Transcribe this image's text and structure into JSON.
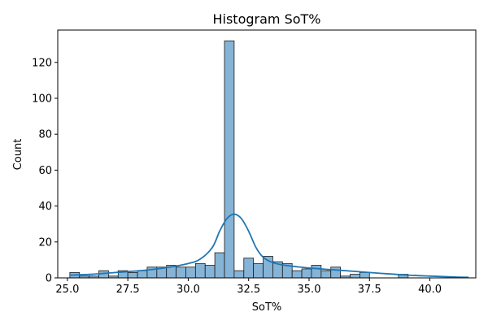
{
  "chart_data": {
    "type": "bar",
    "title": "Histogram SoT%",
    "xlabel": "SoT%",
    "ylabel": "Count",
    "xlim": [
      24.6,
      41.9
    ],
    "ylim": [
      0,
      138
    ],
    "xticks": [
      25.0,
      27.5,
      30.0,
      32.5,
      35.0,
      37.5,
      40.0
    ],
    "xtick_labels": [
      "25.0",
      "27.5",
      "30.0",
      "32.5",
      "35.0",
      "37.5",
      "40.0"
    ],
    "yticks": [
      0,
      20,
      40,
      60,
      80,
      100,
      120
    ],
    "ytick_labels": [
      "0",
      "20",
      "40",
      "60",
      "80",
      "100",
      "120"
    ],
    "grid": false,
    "colors": {
      "bar_fill": "#86b4d7",
      "bar_edge": "#1a1a1a",
      "kde_line": "#1f77b4"
    },
    "bins": {
      "edges": [
        25.1,
        25.5,
        25.9,
        26.3,
        26.7,
        27.1,
        27.5,
        27.9,
        28.3,
        28.7,
        29.1,
        29.5,
        29.9,
        30.3,
        30.7,
        31.1,
        31.5,
        31.9,
        32.3,
        32.7,
        33.1,
        33.5,
        33.9,
        34.3,
        34.7,
        35.1,
        35.5,
        35.9,
        36.3,
        36.7,
        37.1,
        37.5,
        37.9,
        38.3,
        38.7,
        39.1,
        39.5,
        39.9,
        40.3,
        40.7,
        41.1,
        41.5
      ],
      "counts": [
        3,
        1,
        1,
        4,
        1,
        4,
        3,
        4,
        6,
        6,
        7,
        6,
        6,
        8,
        7,
        14,
        132,
        4,
        11,
        8,
        12,
        9,
        8,
        4,
        5,
        7,
        4,
        6,
        1,
        2,
        3,
        0,
        0,
        0,
        2,
        0,
        0,
        0,
        0,
        0,
        0
      ]
    },
    "kde": {
      "x": [
        25.1,
        26.0,
        27.0,
        28.0,
        29.0,
        30.0,
        30.5,
        31.0,
        31.3,
        31.6,
        31.9,
        32.2,
        32.5,
        32.8,
        33.1,
        33.5,
        34.0,
        35.0,
        36.0,
        37.0,
        38.0,
        39.0,
        40.0,
        41.0,
        41.6
      ],
      "y": [
        1.5,
        2.0,
        3.0,
        4.0,
        5.5,
        8.0,
        10.5,
        17.0,
        26.0,
        33.0,
        35.5,
        33.0,
        26.0,
        17.0,
        11.5,
        8.5,
        7.0,
        5.5,
        4.5,
        3.5,
        2.5,
        1.6,
        1.0,
        0.5,
        0.3
      ]
    }
  }
}
